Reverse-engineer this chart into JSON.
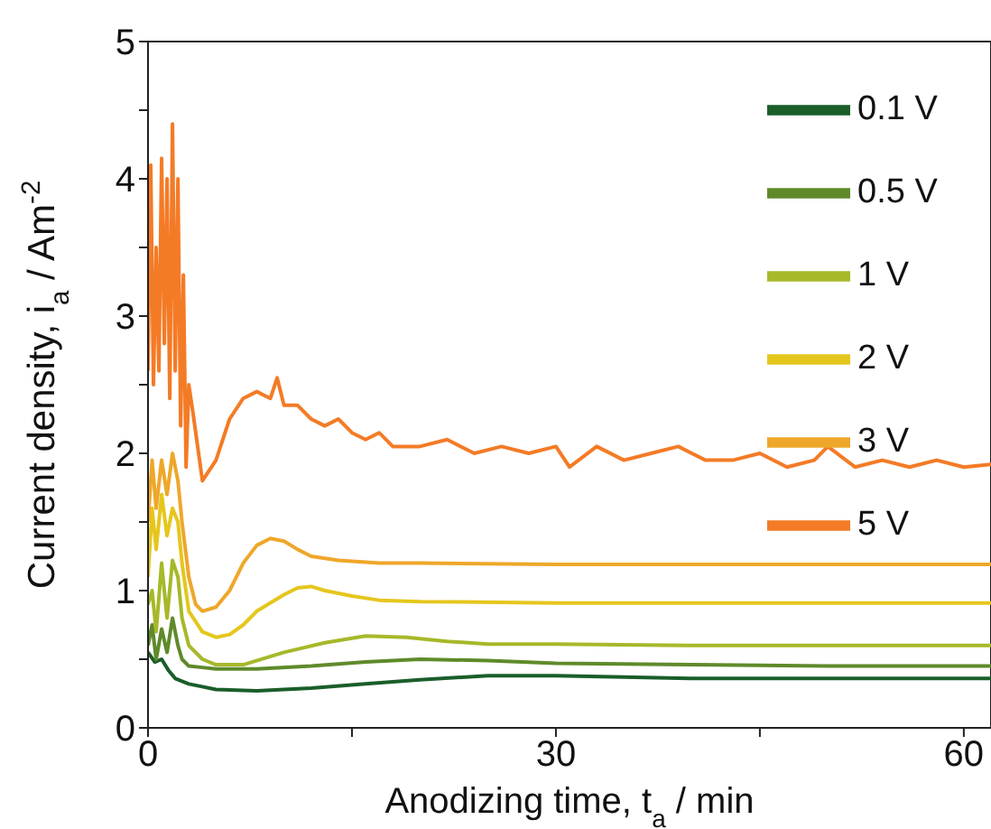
{
  "chart_data": {
    "type": "line",
    "xlabel": "Anodizing time, t$_{a}$ / min",
    "ylabel": "Current density, i$_{a}$ / Am$^{-2}$",
    "xlim": [
      0,
      62
    ],
    "xticks": [
      0,
      {
        "value": 15,
        "label": null
      },
      30,
      {
        "value": 45,
        "label": null
      },
      60
    ],
    "ylim": [
      0,
      5
    ],
    "yticks": [
      0,
      {
        "value": 0.5,
        "label": null
      },
      1,
      {
        "value": 1.5,
        "label": null
      },
      2,
      {
        "value": 2.5,
        "label": null
      },
      3,
      {
        "value": 3.5,
        "label": null
      },
      4,
      {
        "value": 4.5,
        "label": null
      },
      5
    ],
    "grid": false,
    "legend": "top right",
    "marker": "none",
    "line_style": "solid",
    "series": [
      {
        "name": "0.1 V",
        "color": "#1a5e2a",
        "x": [
          0,
          0.5,
          1,
          1.5,
          2,
          3,
          5,
          8,
          12,
          16,
          20,
          25,
          30,
          35,
          40,
          50,
          62
        ],
        "values": [
          0.55,
          0.48,
          0.5,
          0.42,
          0.36,
          0.32,
          0.28,
          0.27,
          0.29,
          0.32,
          0.35,
          0.38,
          0.38,
          0.37,
          0.36,
          0.36,
          0.36
        ]
      },
      {
        "name": "0.5 V",
        "color": "#5f8a2a",
        "x": [
          0,
          0.3,
          0.6,
          1,
          1.4,
          1.8,
          2.2,
          2.5,
          3,
          4,
          5,
          8,
          12,
          16,
          20,
          25,
          30,
          40,
          50,
          62
        ],
        "values": [
          0.6,
          0.75,
          0.5,
          0.72,
          0.55,
          0.8,
          0.6,
          0.5,
          0.45,
          0.44,
          0.43,
          0.43,
          0.45,
          0.48,
          0.5,
          0.49,
          0.47,
          0.46,
          0.45,
          0.45
        ]
      },
      {
        "name": "1 V",
        "color": "#a7b82a",
        "x": [
          0,
          0.3,
          0.6,
          1,
          1.4,
          1.8,
          2.2,
          2.5,
          3,
          4,
          5,
          7,
          10,
          13,
          16,
          19,
          22,
          25,
          30,
          40,
          50,
          62
        ],
        "values": [
          0.9,
          1.0,
          0.7,
          1.2,
          0.8,
          1.22,
          1.1,
          0.8,
          0.6,
          0.5,
          0.46,
          0.46,
          0.55,
          0.62,
          0.67,
          0.66,
          0.63,
          0.61,
          0.61,
          0.6,
          0.6,
          0.6
        ]
      },
      {
        "name": "2 V",
        "color": "#e5c61c",
        "x": [
          0,
          0.3,
          0.6,
          1,
          1.4,
          1.8,
          2.2,
          2.5,
          3,
          4,
          5,
          6,
          7,
          8,
          10,
          11,
          12,
          13,
          15,
          17,
          20,
          30,
          40,
          50,
          62
        ],
        "values": [
          1.1,
          1.6,
          1.3,
          1.7,
          1.4,
          1.6,
          1.5,
          1.2,
          0.85,
          0.7,
          0.66,
          0.68,
          0.75,
          0.85,
          0.97,
          1.02,
          1.03,
          1.0,
          0.96,
          0.93,
          0.92,
          0.91,
          0.91,
          0.91,
          0.91
        ]
      },
      {
        "name": "3 V",
        "color": "#eea72a",
        "x": [
          0,
          0.3,
          0.6,
          1,
          1.4,
          1.8,
          2.2,
          2.5,
          3,
          3.5,
          4,
          5,
          6,
          7,
          8,
          9,
          10,
          11,
          12,
          14,
          17,
          20,
          30,
          40,
          50,
          62
        ],
        "values": [
          1.5,
          1.95,
          1.6,
          1.95,
          1.7,
          2.0,
          1.8,
          1.5,
          1.1,
          0.9,
          0.85,
          0.88,
          1.0,
          1.2,
          1.33,
          1.38,
          1.36,
          1.3,
          1.25,
          1.22,
          1.2,
          1.2,
          1.19,
          1.19,
          1.19,
          1.19
        ]
      },
      {
        "name": "5 V",
        "color": "#f47b26",
        "x": [
          0,
          0.2,
          0.4,
          0.6,
          0.8,
          1,
          1.2,
          1.4,
          1.6,
          1.8,
          2,
          2.2,
          2.4,
          2.6,
          2.8,
          3,
          3.3,
          4,
          5,
          6,
          7,
          8,
          9,
          9.5,
          10,
          11,
          12,
          13,
          14,
          15,
          16,
          17,
          18,
          20,
          22,
          24,
          26,
          28,
          30,
          31,
          33,
          35,
          37,
          39,
          41,
          43,
          45,
          47,
          49,
          50,
          52,
          54,
          56,
          58,
          60,
          62
        ],
        "values": [
          2.6,
          4.1,
          2.5,
          3.5,
          2.6,
          4.15,
          2.8,
          4.0,
          2.4,
          4.4,
          2.6,
          4.0,
          2.2,
          3.3,
          1.9,
          2.5,
          2.3,
          1.8,
          1.95,
          2.25,
          2.4,
          2.45,
          2.4,
          2.55,
          2.35,
          2.35,
          2.25,
          2.2,
          2.25,
          2.15,
          2.1,
          2.15,
          2.05,
          2.05,
          2.1,
          2.0,
          2.05,
          2.0,
          2.05,
          1.9,
          2.05,
          1.95,
          2.0,
          2.05,
          1.95,
          1.95,
          2.0,
          1.9,
          1.95,
          2.05,
          1.9,
          1.95,
          1.9,
          1.95,
          1.9,
          1.92
        ]
      }
    ]
  }
}
